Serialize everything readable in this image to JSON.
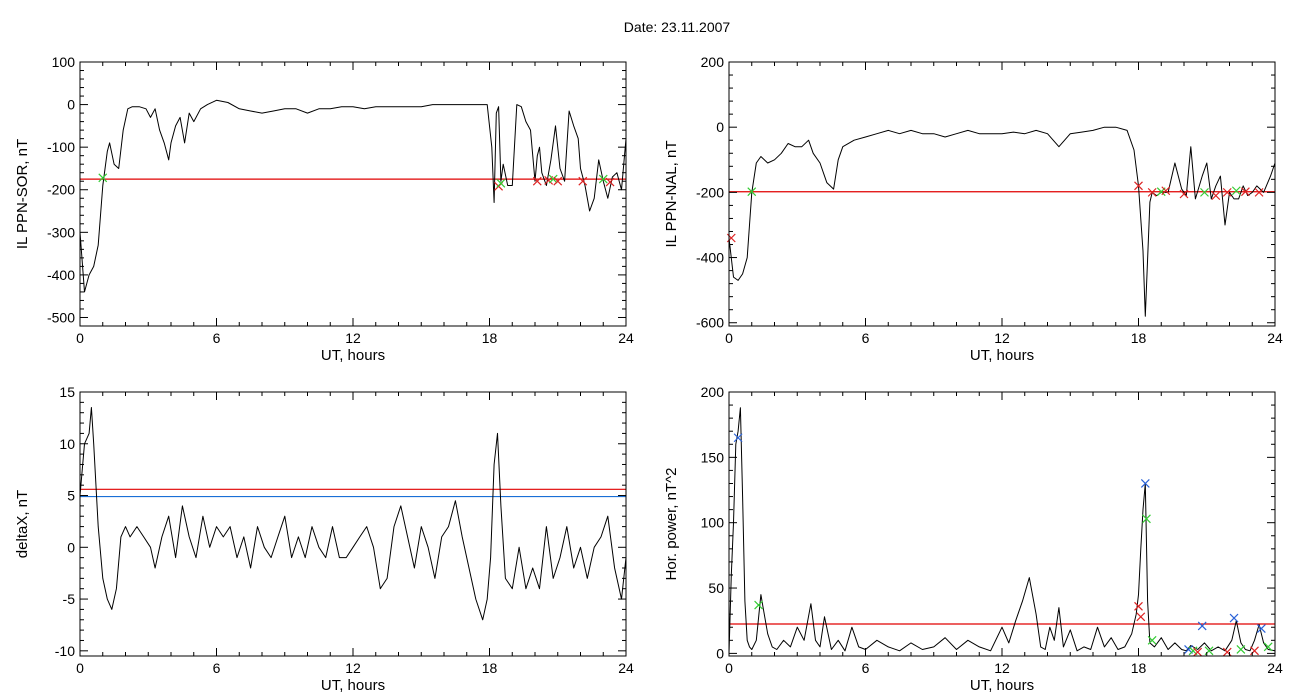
{
  "page_title": "Date:  23.11.2007",
  "colors": {
    "data": "#000000",
    "threshold_red": "#e00000",
    "threshold_blue": "#1a6fd6",
    "marker_red": "#dd2222",
    "marker_green": "#33cc33",
    "marker_blue": "#2a62d8"
  },
  "chart_data": [
    {
      "id": "p1",
      "type": "line",
      "xlabel": "UT, hours",
      "ylabel": "IL PPN-SOR, nT",
      "xlim": [
        0,
        24
      ],
      "ylim": [
        -520,
        100
      ],
      "xticks": [
        0,
        6,
        12,
        18,
        24
      ],
      "yticks": [
        100,
        0,
        -100,
        -200,
        -300,
        -400,
        -500
      ],
      "grid": false,
      "series": [
        {
          "x": [
            0,
            0.2,
            0.4,
            0.6,
            0.8,
            1.0,
            1.2,
            1.3,
            1.5,
            1.7,
            1.9,
            2.1,
            2.3,
            2.6,
            2.9,
            3.1,
            3.3,
            3.5,
            3.7,
            3.9,
            4.0,
            4.2,
            4.4,
            4.6,
            4.8,
            5.0,
            5.3,
            5.6,
            6.0,
            6.5,
            7,
            7.5,
            8,
            8.5,
            9,
            9.5,
            10,
            10.5,
            11,
            11.5,
            12,
            12.5,
            13,
            13.5,
            14,
            14.5,
            15,
            15.5,
            16,
            16.5,
            17,
            17.5,
            17.9,
            18.1,
            18.2,
            18.3,
            18.4,
            18.5,
            18.6,
            18.8,
            19.0,
            19.2,
            19.4,
            19.6,
            19.8,
            20.0,
            20.1,
            20.2,
            20.3,
            20.5,
            20.7,
            20.9,
            21.1,
            21.3,
            21.5,
            21.7,
            21.9,
            22.0,
            22.2,
            22.4,
            22.6,
            22.8,
            23.0,
            23.2,
            23.4,
            23.6,
            23.8,
            24
          ],
          "y": [
            -300,
            -440,
            -400,
            -380,
            -330,
            -190,
            -110,
            -90,
            -140,
            -150,
            -60,
            -10,
            -5,
            -5,
            -10,
            -30,
            -10,
            -60,
            -90,
            -130,
            -90,
            -50,
            -30,
            -90,
            -20,
            -40,
            -10,
            0,
            10,
            5,
            -10,
            -15,
            -20,
            -15,
            -10,
            -10,
            -20,
            -10,
            -10,
            -5,
            -5,
            -10,
            -5,
            -5,
            -5,
            -5,
            -5,
            0,
            0,
            0,
            0,
            0,
            0,
            -100,
            -230,
            -20,
            -5,
            -180,
            -140,
            -190,
            -190,
            0,
            -5,
            -40,
            -60,
            -180,
            -120,
            -100,
            -160,
            -190,
            -130,
            -50,
            -150,
            -180,
            -15,
            -50,
            -80,
            -150,
            -190,
            -250,
            -220,
            -130,
            -180,
            -220,
            -170,
            -160,
            -200,
            -80
          ]
        }
      ],
      "thresholds": [
        {
          "value": -175,
          "color": "red"
        }
      ],
      "markers": [
        {
          "x": 1.0,
          "y": -172,
          "color": "green"
        },
        {
          "x": 18.4,
          "y": -192,
          "color": "red"
        },
        {
          "x": 18.5,
          "y": -185,
          "color": "green"
        },
        {
          "x": 20.1,
          "y": -180,
          "color": "red"
        },
        {
          "x": 20.6,
          "y": -178,
          "color": "red"
        },
        {
          "x": 20.8,
          "y": -175,
          "color": "green"
        },
        {
          "x": 21.0,
          "y": -180,
          "color": "red"
        },
        {
          "x": 22.1,
          "y": -180,
          "color": "red"
        },
        {
          "x": 23.0,
          "y": -175,
          "color": "green"
        },
        {
          "x": 23.3,
          "y": -182,
          "color": "red"
        }
      ]
    },
    {
      "id": "p2",
      "type": "line",
      "xlabel": "UT, hours",
      "ylabel": "IL PPN-NAL, nT",
      "xlim": [
        0,
        24
      ],
      "ylim": [
        -610,
        200
      ],
      "xticks": [
        0,
        6,
        12,
        18,
        24
      ],
      "yticks": [
        200,
        0,
        -200,
        -400,
        -600
      ],
      "grid": false,
      "series": [
        {
          "x": [
            0,
            0.2,
            0.4,
            0.6,
            0.8,
            1.0,
            1.2,
            1.4,
            1.7,
            2.0,
            2.3,
            2.6,
            2.9,
            3.2,
            3.5,
            3.7,
            4.0,
            4.3,
            4.6,
            4.8,
            5.0,
            5.5,
            6,
            6.5,
            7,
            7.5,
            8,
            8.5,
            9,
            9.5,
            10,
            10.5,
            11,
            11.5,
            12,
            12.5,
            13,
            13.5,
            14,
            14.5,
            15,
            15.5,
            16,
            16.5,
            17,
            17.5,
            17.8,
            18.0,
            18.2,
            18.3,
            18.5,
            18.6,
            18.8,
            19,
            19.3,
            19.6,
            19.9,
            20.1,
            20.3,
            20.5,
            20.8,
            21.0,
            21.2,
            21.4,
            21.6,
            21.8,
            22.0,
            22.2,
            22.4,
            22.6,
            22.8,
            23,
            23.2,
            23.5,
            23.8,
            24
          ],
          "y": [
            -340,
            -460,
            -470,
            -450,
            -400,
            -200,
            -110,
            -90,
            -110,
            -100,
            -80,
            -50,
            -60,
            -60,
            -40,
            -80,
            -110,
            -170,
            -190,
            -100,
            -60,
            -40,
            -30,
            -20,
            -10,
            -20,
            -10,
            -20,
            -20,
            -30,
            -20,
            -10,
            -20,
            -20,
            -20,
            -15,
            -20,
            -10,
            -20,
            -60,
            -20,
            -15,
            -10,
            0,
            0,
            -10,
            -70,
            -180,
            -380,
            -580,
            -230,
            -200,
            -210,
            -200,
            -200,
            -110,
            -190,
            -210,
            -60,
            -220,
            -150,
            -110,
            -220,
            -180,
            -150,
            -300,
            -200,
            -220,
            -220,
            -180,
            -210,
            -200,
            -180,
            -200,
            -150,
            -110
          ]
        }
      ],
      "thresholds": [
        {
          "value": -198,
          "color": "red"
        }
      ],
      "markers": [
        {
          "x": 0.1,
          "y": -340,
          "color": "red"
        },
        {
          "x": 1.0,
          "y": -198,
          "color": "green"
        },
        {
          "x": 18.0,
          "y": -180,
          "color": "red"
        },
        {
          "x": 18.6,
          "y": -200,
          "color": "red"
        },
        {
          "x": 19.0,
          "y": -198,
          "color": "green"
        },
        {
          "x": 19.2,
          "y": -195,
          "color": "red"
        },
        {
          "x": 20.0,
          "y": -205,
          "color": "red"
        },
        {
          "x": 20.9,
          "y": -200,
          "color": "green"
        },
        {
          "x": 21.4,
          "y": -210,
          "color": "red"
        },
        {
          "x": 21.9,
          "y": -200,
          "color": "red"
        },
        {
          "x": 22.3,
          "y": -195,
          "color": "green"
        },
        {
          "x": 22.7,
          "y": -198,
          "color": "red"
        },
        {
          "x": 23.3,
          "y": -200,
          "color": "red"
        }
      ]
    },
    {
      "id": "p3",
      "type": "line",
      "xlabel": "UT, hours",
      "ylabel": "deltaX, nT",
      "xlim": [
        0,
        24
      ],
      "ylim": [
        -10.5,
        15
      ],
      "xticks": [
        0,
        6,
        12,
        18,
        24
      ],
      "yticks": [
        15,
        10,
        5,
        0,
        -5,
        -10
      ],
      "grid": false,
      "series": [
        {
          "x": [
            0,
            0.2,
            0.4,
            0.5,
            0.6,
            0.8,
            1.0,
            1.2,
            1.4,
            1.6,
            1.8,
            2.0,
            2.2,
            2.5,
            2.8,
            3.1,
            3.3,
            3.6,
            3.9,
            4.2,
            4.5,
            4.8,
            5.1,
            5.4,
            5.7,
            6,
            6.3,
            6.6,
            6.9,
            7.2,
            7.5,
            7.8,
            8.1,
            8.4,
            8.7,
            9,
            9.3,
            9.6,
            9.9,
            10.2,
            10.5,
            10.8,
            11.1,
            11.4,
            11.7,
            12,
            12.3,
            12.6,
            12.9,
            13.2,
            13.5,
            13.8,
            14.1,
            14.4,
            14.7,
            15,
            15.3,
            15.6,
            15.9,
            16.2,
            16.5,
            16.8,
            17.1,
            17.4,
            17.7,
            17.9,
            18.05,
            18.2,
            18.35,
            18.5,
            18.7,
            19,
            19.3,
            19.6,
            19.9,
            20.2,
            20.5,
            20.8,
            21.1,
            21.4,
            21.7,
            22,
            22.3,
            22.6,
            22.9,
            23.2,
            23.5,
            23.8,
            24
          ],
          "y": [
            5,
            10,
            11,
            13.5,
            10,
            2,
            -3,
            -5,
            -6,
            -4,
            1,
            2,
            1,
            2,
            1,
            0,
            -2,
            1,
            3,
            -1,
            4,
            1,
            -1,
            3,
            0,
            2,
            1,
            2,
            -1,
            1,
            -2,
            2,
            0,
            -1,
            1,
            3,
            -1,
            1,
            -1,
            2,
            0,
            -1,
            2,
            -1,
            -1,
            0,
            1,
            2,
            0,
            -4,
            -3,
            2,
            4,
            1,
            -2,
            2,
            0,
            -3,
            1,
            2,
            4.5,
            1,
            -2,
            -5,
            -7,
            -5,
            -1,
            8,
            11,
            4,
            -3,
            -4,
            0,
            -4,
            -2,
            -4,
            2,
            -3,
            -1,
            2,
            -2,
            0,
            -3,
            0,
            1,
            3,
            -2,
            -5,
            -1
          ]
        }
      ],
      "thresholds": [
        {
          "value": 5.6,
          "color": "red"
        },
        {
          "value": 4.9,
          "color": "blue"
        }
      ],
      "markers": []
    },
    {
      "id": "p4",
      "type": "line",
      "xlabel": "UT, hours",
      "ylabel": "Hor. power, nT^2",
      "xlim": [
        0,
        24
      ],
      "ylim": [
        -2,
        200
      ],
      "xticks": [
        0,
        6,
        12,
        18,
        24
      ],
      "yticks": [
        200,
        150,
        100,
        50,
        0
      ],
      "grid": false,
      "series": [
        {
          "x": [
            0,
            0.1,
            0.2,
            0.3,
            0.4,
            0.5,
            0.6,
            0.7,
            0.8,
            0.9,
            1.0,
            1.2,
            1.4,
            1.5,
            1.7,
            1.9,
            2.1,
            2.4,
            2.7,
            3.0,
            3.3,
            3.6,
            3.8,
            4.0,
            4.2,
            4.5,
            4.8,
            5.1,
            5.4,
            5.7,
            6,
            6.5,
            7,
            7.5,
            8,
            8.5,
            9,
            9.5,
            10,
            10.5,
            11,
            11.5,
            12,
            12.3,
            12.6,
            12.9,
            13.2,
            13.5,
            13.7,
            13.9,
            14.1,
            14.3,
            14.5,
            14.7,
            15.0,
            15.3,
            15.6,
            15.9,
            16.2,
            16.5,
            16.8,
            17.1,
            17.4,
            17.7,
            17.9,
            18.0,
            18.1,
            18.2,
            18.3,
            18.4,
            18.5,
            18.7,
            19.0,
            19.3,
            19.6,
            19.9,
            20.1,
            20.3,
            20.6,
            20.9,
            21.2,
            21.5,
            21.8,
            22.1,
            22.3,
            22.5,
            22.7,
            22.9,
            23.1,
            23.3,
            23.5,
            23.7,
            24
          ],
          "y": [
            0,
            60,
            100,
            160,
            170,
            188,
            120,
            40,
            10,
            5,
            3,
            10,
            45,
            35,
            15,
            5,
            3,
            10,
            5,
            20,
            10,
            38,
            10,
            5,
            28,
            3,
            10,
            2,
            20,
            5,
            3,
            10,
            5,
            2,
            8,
            3,
            5,
            12,
            3,
            10,
            5,
            2,
            20,
            8,
            25,
            40,
            58,
            30,
            5,
            3,
            20,
            10,
            35,
            5,
            18,
            2,
            5,
            3,
            20,
            5,
            12,
            3,
            5,
            15,
            30,
            45,
            80,
            110,
            130,
            40,
            8,
            5,
            12,
            3,
            8,
            3,
            2,
            6,
            3,
            8,
            2,
            5,
            2,
            10,
            25,
            8,
            3,
            2,
            10,
            22,
            8,
            3,
            2
          ]
        }
      ],
      "thresholds": [
        {
          "value": 22.5,
          "color": "red"
        }
      ],
      "markers": [
        {
          "x": 0.4,
          "y": 165,
          "color": "blue"
        },
        {
          "x": 1.3,
          "y": 37,
          "color": "green"
        },
        {
          "x": 18.0,
          "y": 36,
          "color": "red"
        },
        {
          "x": 18.1,
          "y": 28,
          "color": "red"
        },
        {
          "x": 18.3,
          "y": 130,
          "color": "blue"
        },
        {
          "x": 18.35,
          "y": 103,
          "color": "green"
        },
        {
          "x": 18.6,
          "y": 10,
          "color": "green"
        },
        {
          "x": 20.2,
          "y": 3,
          "color": "blue"
        },
        {
          "x": 20.4,
          "y": 2,
          "color": "green"
        },
        {
          "x": 20.6,
          "y": 1,
          "color": "red"
        },
        {
          "x": 20.8,
          "y": 21,
          "color": "blue"
        },
        {
          "x": 21.1,
          "y": 2,
          "color": "green"
        },
        {
          "x": 21.9,
          "y": 1,
          "color": "red"
        },
        {
          "x": 22.2,
          "y": 27,
          "color": "blue"
        },
        {
          "x": 22.5,
          "y": 3,
          "color": "green"
        },
        {
          "x": 23.1,
          "y": 2,
          "color": "red"
        },
        {
          "x": 23.4,
          "y": 19,
          "color": "blue"
        },
        {
          "x": 23.7,
          "y": 5,
          "color": "green"
        }
      ]
    }
  ]
}
